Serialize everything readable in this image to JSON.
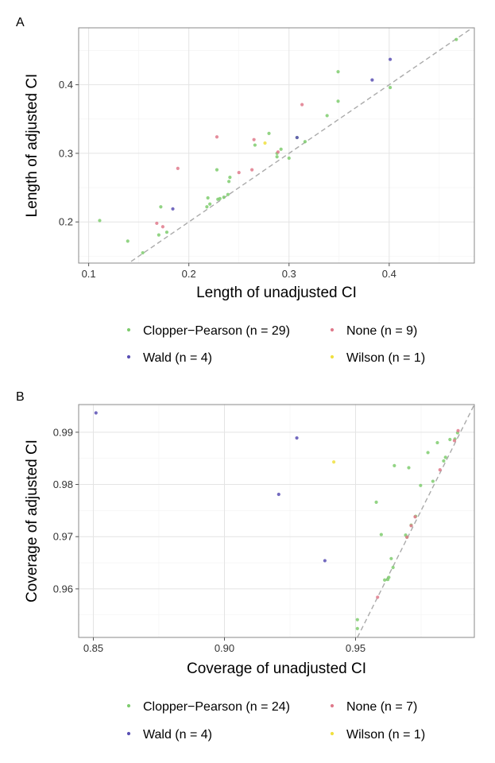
{
  "chart_data": [
    {
      "type": "scatter",
      "panel_label": "A",
      "xlabel": "Length of unadjusted CI",
      "ylabel": "Length of adjusted CI",
      "xlim": [
        0.09,
        0.485
      ],
      "ylim": [
        0.14,
        0.483
      ],
      "xticks": [
        {
          "v": 0.1,
          "label": "0.1"
        },
        {
          "v": 0.2,
          "label": "0.2"
        },
        {
          "v": 0.3,
          "label": "0.3"
        },
        {
          "v": 0.4,
          "label": "0.4"
        }
      ],
      "yticks": [
        {
          "v": 0.2,
          "label": "0.2"
        },
        {
          "v": 0.3,
          "label": "0.3"
        },
        {
          "v": 0.4,
          "label": "0.4"
        }
      ],
      "xminor": [
        0.15,
        0.25,
        0.35,
        0.45
      ],
      "yminor": [
        0.15,
        0.25,
        0.35,
        0.45
      ],
      "reference_line": [
        [
          0.09,
          0.09
        ],
        [
          0.485,
          0.485
        ]
      ],
      "legend": [
        {
          "label": "Clopper−Pearson (n = 29)",
          "color": "#7fcc6f"
        },
        {
          "label": "None (n = 9)",
          "color": "#e07a8c"
        },
        {
          "label": "Wald (n = 4)",
          "color": "#5a50b4"
        },
        {
          "label": "Wilson (n = 1)",
          "color": "#f0e040"
        }
      ],
      "series": [
        {
          "name": "Clopper-Pearson",
          "color": "#7fcc6f",
          "points": [
            [
              0.111,
              0.202
            ],
            [
              0.139,
              0.172
            ],
            [
              0.154,
              0.155
            ],
            [
              0.17,
              0.181
            ],
            [
              0.172,
              0.222
            ],
            [
              0.178,
              0.185
            ],
            [
              0.219,
              0.235
            ],
            [
              0.221,
              0.226
            ],
            [
              0.228,
              0.276
            ],
            [
              0.231,
              0.234
            ],
            [
              0.235,
              0.236
            ],
            [
              0.239,
              0.24
            ],
            [
              0.24,
              0.259
            ],
            [
              0.241,
              0.265
            ],
            [
              0.266,
              0.312
            ],
            [
              0.28,
              0.329
            ],
            [
              0.288,
              0.3
            ],
            [
              0.292,
              0.306
            ],
            [
              0.3,
              0.293
            ],
            [
              0.308,
              0.323
            ],
            [
              0.316,
              0.317
            ],
            [
              0.338,
              0.355
            ],
            [
              0.349,
              0.419
            ],
            [
              0.349,
              0.376
            ],
            [
              0.401,
              0.396
            ],
            [
              0.467,
              0.466
            ],
            [
              0.229,
              0.233
            ],
            [
              0.218,
              0.222
            ],
            [
              0.288,
              0.295
            ]
          ]
        },
        {
          "name": "None",
          "color": "#e07a8c",
          "points": [
            [
              0.168,
              0.198
            ],
            [
              0.174,
              0.193
            ],
            [
              0.189,
              0.278
            ],
            [
              0.228,
              0.324
            ],
            [
              0.25,
              0.272
            ],
            [
              0.263,
              0.276
            ],
            [
              0.265,
              0.32
            ],
            [
              0.289,
              0.302
            ],
            [
              0.313,
              0.371
            ]
          ]
        },
        {
          "name": "Wald",
          "color": "#5a50b4",
          "points": [
            [
              0.184,
              0.219
            ],
            [
              0.308,
              0.323
            ],
            [
              0.383,
              0.407
            ],
            [
              0.401,
              0.437
            ]
          ]
        },
        {
          "name": "Wilson",
          "color": "#f0e040",
          "points": [
            [
              0.276,
              0.315
            ]
          ]
        }
      ]
    },
    {
      "type": "scatter",
      "panel_label": "B",
      "xlabel": "Coverage of unadjusted CI",
      "ylabel": "Coverage of adjusted CI",
      "xlim": [
        0.8444,
        0.9953
      ],
      "ylim": [
        0.9507,
        0.9953
      ],
      "xticks": [
        {
          "v": 0.85,
          "label": "0.85"
        },
        {
          "v": 0.9,
          "label": "0.90"
        },
        {
          "v": 0.95,
          "label": "0.95"
        }
      ],
      "yticks": [
        {
          "v": 0.96,
          "label": "0.96"
        },
        {
          "v": 0.97,
          "label": "0.97"
        },
        {
          "v": 0.98,
          "label": "0.98"
        },
        {
          "v": 0.99,
          "label": "0.99"
        }
      ],
      "xminor": [
        0.875,
        0.925,
        0.975
      ],
      "yminor": [
        0.955,
        0.965,
        0.975,
        0.985,
        0.995
      ],
      "reference_line": [
        [
          0.9507,
          0.9507
        ],
        [
          0.9953,
          0.9953
        ]
      ],
      "legend": [
        {
          "label": "Clopper−Pearson (n = 24)",
          "color": "#7fcc6f"
        },
        {
          "label": "None (n = 7)",
          "color": "#e07a8c"
        },
        {
          "label": "Wald (n = 4)",
          "color": "#5a50b4"
        },
        {
          "label": "Wilson (n = 1)",
          "color": "#f0e040"
        }
      ],
      "series": [
        {
          "name": "Clopper-Pearson",
          "color": "#7fcc6f",
          "points": [
            [
              0.9507,
              0.9541
            ],
            [
              0.9507,
              0.9524
            ],
            [
              0.9579,
              0.9766
            ],
            [
              0.9598,
              0.9704
            ],
            [
              0.9623,
              0.9618
            ],
            [
              0.9636,
              0.9658
            ],
            [
              0.9643,
              0.9641
            ],
            [
              0.9648,
              0.9836
            ],
            [
              0.9691,
              0.9703
            ],
            [
              0.9696,
              0.9699
            ],
            [
              0.9703,
              0.9832
            ],
            [
              0.9712,
              0.9722
            ],
            [
              0.9729,
              0.9739
            ],
            [
              0.9748,
              0.9798
            ],
            [
              0.9776,
              0.9861
            ],
            [
              0.9795,
              0.9806
            ],
            [
              0.9812,
              0.988
            ],
            [
              0.9836,
              0.9845
            ],
            [
              0.9843,
              0.9852
            ],
            [
              0.986,
              0.9886
            ],
            [
              0.9879,
              0.9887
            ],
            [
              0.9889,
              0.9899
            ],
            [
              0.9611,
              0.9617
            ],
            [
              0.9627,
              0.9622
            ]
          ]
        },
        {
          "name": "None",
          "color": "#e07a8c",
          "points": [
            [
              0.9584,
              0.9584
            ],
            [
              0.9696,
              0.9699
            ],
            [
              0.9712,
              0.9721
            ],
            [
              0.9727,
              0.9738
            ],
            [
              0.9822,
              0.9828
            ],
            [
              0.9877,
              0.9884
            ],
            [
              0.9891,
              0.9903
            ]
          ]
        },
        {
          "name": "Wald",
          "color": "#5a50b4",
          "points": [
            [
              0.851,
              0.9937
            ],
            [
              0.9207,
              0.9781
            ],
            [
              0.9276,
              0.9889
            ],
            [
              0.9383,
              0.9654
            ]
          ]
        },
        {
          "name": "Wilson",
          "color": "#f0e040",
          "points": [
            [
              0.9417,
              0.9843
            ]
          ]
        }
      ]
    }
  ]
}
